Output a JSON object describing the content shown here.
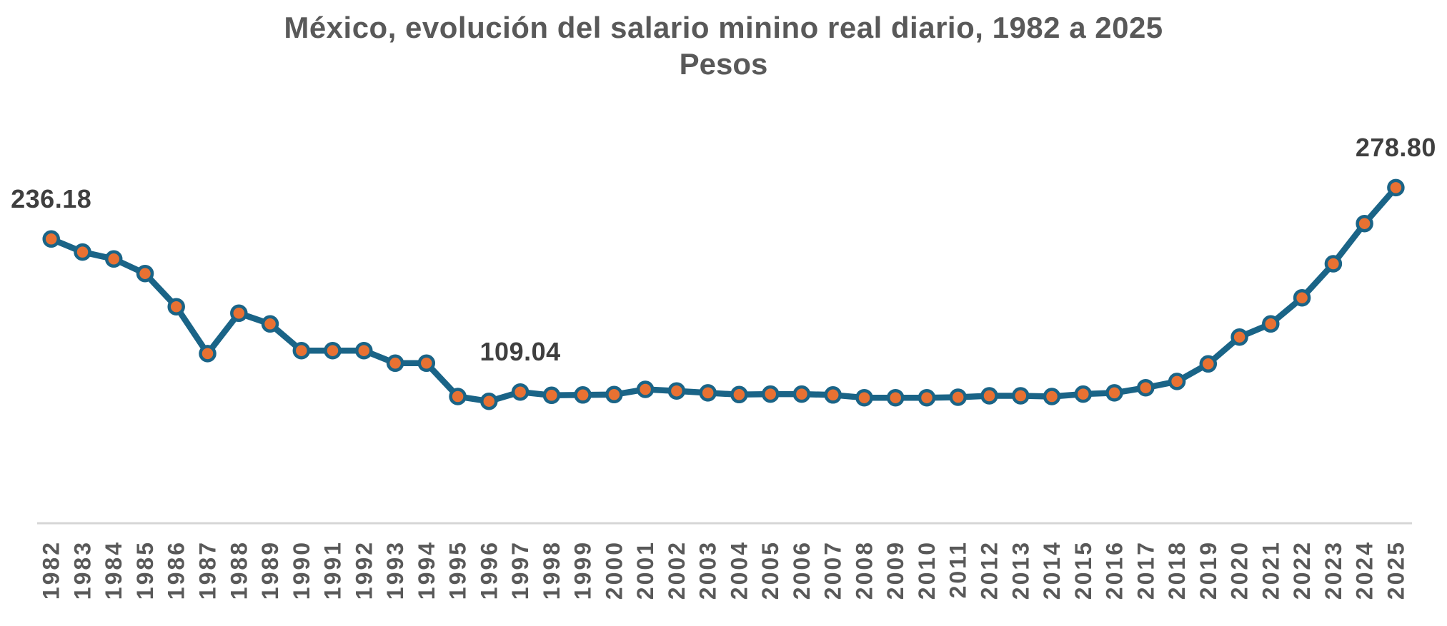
{
  "header": {
    "title": "México, evolución del salario minino real diario, 1982 a 2025",
    "subtitle": "Pesos"
  },
  "colors": {
    "line": "#1A6487",
    "marker_fill": "#E97132",
    "marker_border": "#1A6487",
    "axis_line": "#D6D6D6",
    "title_text": "#595959",
    "tick_text": "#595959",
    "data_label_text": "#3F3F3F",
    "background": "#FFFFFF"
  },
  "chart_data": {
    "type": "line",
    "title": "México, evolución del salario minino real diario, 1982 a 2025",
    "ylabel": "Pesos",
    "xlabel": "",
    "grid": false,
    "legend": "none",
    "ylim": [
      0,
      300
    ],
    "categories": [
      1982,
      1983,
      1984,
      1985,
      1986,
      1987,
      1988,
      1989,
      1990,
      1991,
      1992,
      1993,
      1994,
      1995,
      1996,
      1997,
      1998,
      1999,
      2000,
      2001,
      2002,
      2003,
      2004,
      2005,
      2006,
      2007,
      2008,
      2009,
      2010,
      2011,
      2012,
      2013,
      2014,
      2015,
      2016,
      2017,
      2018,
      2019,
      2020,
      2021,
      2022,
      2023,
      2024,
      2025
    ],
    "values": [
      236.18,
      225.3,
      219.6,
      207.5,
      179.9,
      140.9,
      174.5,
      165.6,
      143.4,
      143.4,
      143.4,
      133.0,
      133.0,
      105.3,
      101.3,
      109.04,
      106.3,
      106.6,
      106.9,
      111.2,
      109.9,
      108.3,
      106.9,
      107.3,
      107.3,
      106.6,
      104.3,
      104.3,
      104.3,
      104.7,
      105.9,
      105.9,
      105.3,
      107.3,
      108.3,
      112.6,
      117.8,
      132.4,
      154.7,
      165.6,
      187.3,
      215.6,
      249.0,
      278.8
    ],
    "data_labels": [
      {
        "year": 1982,
        "text": "236.18"
      },
      {
        "year": 1997,
        "text": "109.04"
      },
      {
        "year": 2025,
        "text": "278.80"
      }
    ]
  }
}
